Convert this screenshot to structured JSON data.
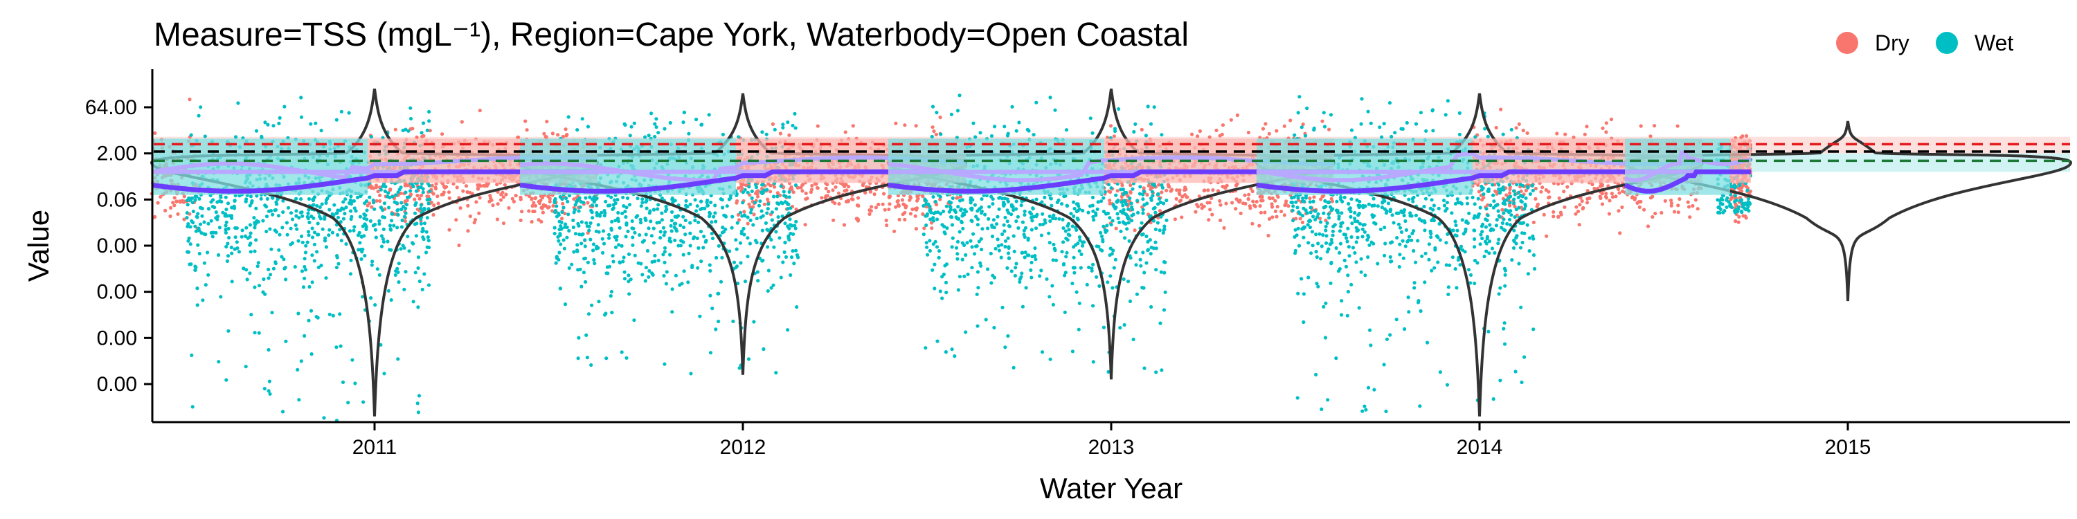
{
  "chart_data": {
    "type": "scatter",
    "title": "Measure=TSS (mgL⁻¹), Region=Cape York, Waterbody=Open Coastal",
    "xlabel": "Water Year",
    "ylabel": "Value",
    "y_scale": "log2",
    "ytick_labels": [
      "64.00",
      "2.00",
      "0.06",
      "0.00",
      "0.00",
      "0.00",
      "0.00"
    ],
    "ytick_log2": [
      6,
      1,
      -4,
      -9,
      -14,
      -19,
      -24
    ],
    "ylim_log2": [
      -28,
      9.5
    ],
    "categories": [
      "2011",
      "2012",
      "2013",
      "2014",
      "2015"
    ],
    "legend": {
      "placement": "top-right",
      "entries": [
        {
          "label": "Dry",
          "color": "#F8766D"
        },
        {
          "label": "Wet",
          "color": "#00BFC4"
        }
      ]
    },
    "colors": {
      "dry": "#F8766D",
      "wet": "#00BFC4",
      "dry_fill": "#FCB8B3",
      "wet_fill": "#7FDFE1",
      "trend": "#6A3DFF",
      "trend_light": "#B9A8FF",
      "violin": "#333333",
      "guideline_red": "#E41A1C",
      "guideline_black": "#000000",
      "guideline_green": "#1B7837"
    },
    "guidelines": {
      "dry": {
        "value_log2": 2.0,
        "band_log2": [
          1.0,
          2.8
        ]
      },
      "overall": {
        "value_log2": 1.2
      },
      "wet": {
        "value_log2": 0.2,
        "band_log2": [
          -1.0,
          1.0
        ]
      }
    },
    "violin": {
      "center_log2": 0.0,
      "upper_tail_log2": 8.5
    },
    "series": [
      {
        "name": "Dry",
        "years": [
          {
            "year": "2011",
            "median_log2": -1.5,
            "min_log2": -9.0,
            "max_log2": 8.0
          },
          {
            "year": "2012",
            "median_log2": -1.5,
            "min_log2": -8.0,
            "max_log2": 7.5
          },
          {
            "year": "2013",
            "median_log2": -1.5,
            "min_log2": -12.0,
            "max_log2": 8.0
          },
          {
            "year": "2014",
            "median_log2": -1.5,
            "min_log2": -10.0,
            "max_log2": 7.5
          },
          {
            "year": "2015",
            "median_log2": -1.0,
            "min_log2": -9.0,
            "max_log2": 3.0
          }
        ]
      },
      {
        "name": "Wet",
        "years": [
          {
            "year": "2011",
            "median_log2": -4.5,
            "min_log2": -28.0,
            "max_log2": 7.5
          },
          {
            "year": "2012",
            "median_log2": -4.5,
            "min_log2": -23.0,
            "max_log2": 5.5
          },
          {
            "year": "2013",
            "median_log2": -4.5,
            "min_log2": -24.0,
            "max_log2": 8.0
          },
          {
            "year": "2014",
            "median_log2": -4.5,
            "min_log2": -27.0,
            "max_log2": 7.5
          },
          {
            "year": "2015",
            "median_log2": -1.5,
            "min_log2": -5.5,
            "max_log2": 2.0
          }
        ]
      }
    ],
    "violin_tails_log2": [
      {
        "year": "2011",
        "min": -27.5,
        "max": 8.0
      },
      {
        "year": "2012",
        "min": -23.0,
        "max": 7.5
      },
      {
        "year": "2013",
        "min": -23.5,
        "max": 8.0
      },
      {
        "year": "2014",
        "min": -27.5,
        "max": 7.5
      },
      {
        "year": "2015",
        "min": -15.0,
        "max": 4.5
      }
    ],
    "grid": false
  }
}
